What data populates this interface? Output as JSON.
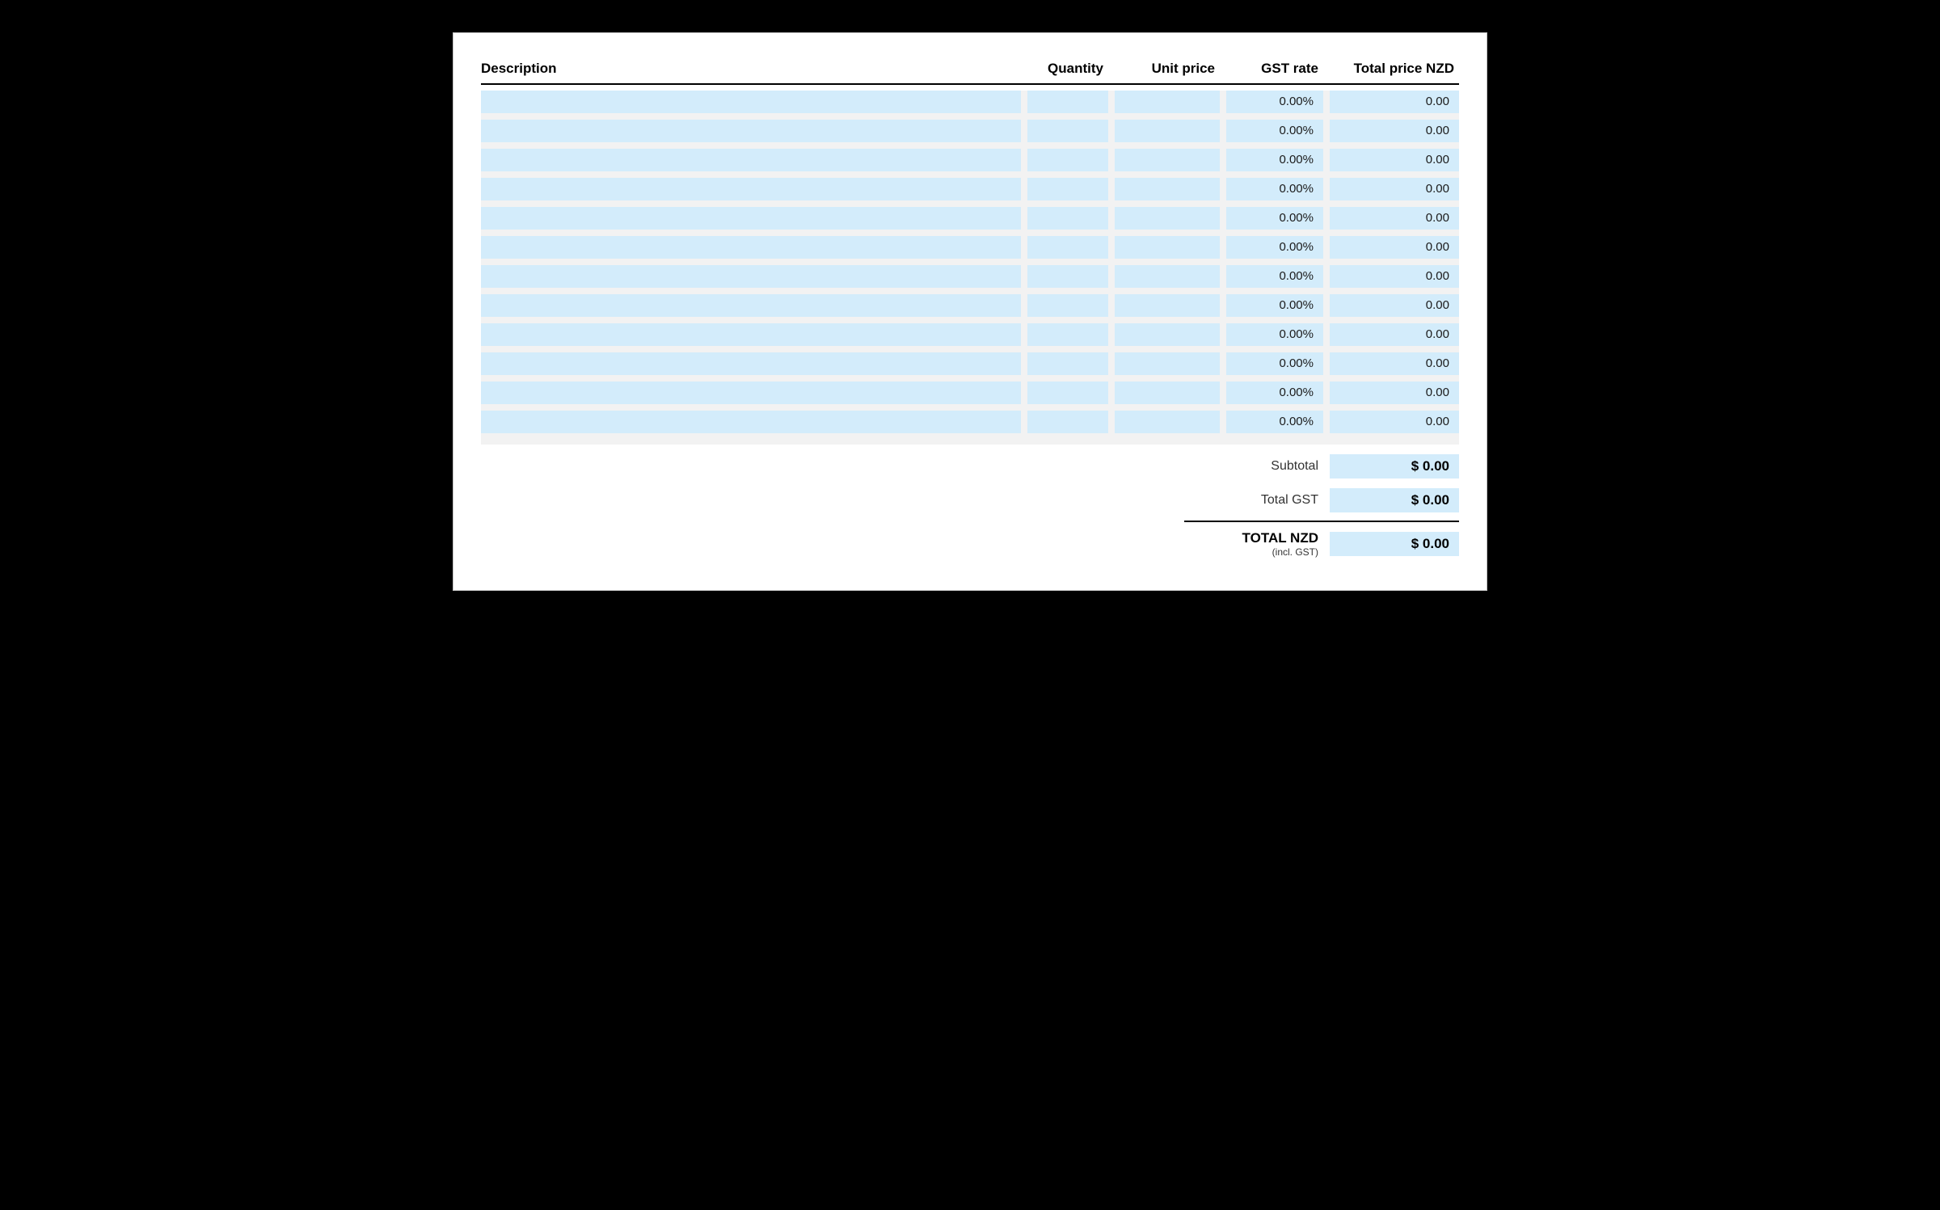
{
  "colors": {
    "page_bg": "#ffffff",
    "outer_bg": "#000000",
    "row_bg": "#f2f2f2",
    "cell_bg": "#d3ecfb",
    "text": "#000000",
    "border": "#000000"
  },
  "table": {
    "columns": [
      {
        "key": "description",
        "label": "Description",
        "align": "left"
      },
      {
        "key": "quantity",
        "label": "Quantity",
        "align": "right"
      },
      {
        "key": "unit_price",
        "label": "Unit price",
        "align": "right"
      },
      {
        "key": "gst_rate",
        "label": "GST rate",
        "align": "right"
      },
      {
        "key": "total_price",
        "label": "Total price NZD",
        "align": "right"
      }
    ],
    "rows": [
      {
        "description": "",
        "quantity": "",
        "unit_price": "",
        "gst_rate": "0.00%",
        "total_price": "0.00"
      },
      {
        "description": "",
        "quantity": "",
        "unit_price": "",
        "gst_rate": "0.00%",
        "total_price": "0.00"
      },
      {
        "description": "",
        "quantity": "",
        "unit_price": "",
        "gst_rate": "0.00%",
        "total_price": "0.00"
      },
      {
        "description": "",
        "quantity": "",
        "unit_price": "",
        "gst_rate": "0.00%",
        "total_price": "0.00"
      },
      {
        "description": "",
        "quantity": "",
        "unit_price": "",
        "gst_rate": "0.00%",
        "total_price": "0.00"
      },
      {
        "description": "",
        "quantity": "",
        "unit_price": "",
        "gst_rate": "0.00%",
        "total_price": "0.00"
      },
      {
        "description": "",
        "quantity": "",
        "unit_price": "",
        "gst_rate": "0.00%",
        "total_price": "0.00"
      },
      {
        "description": "",
        "quantity": "",
        "unit_price": "",
        "gst_rate": "0.00%",
        "total_price": "0.00"
      },
      {
        "description": "",
        "quantity": "",
        "unit_price": "",
        "gst_rate": "0.00%",
        "total_price": "0.00"
      },
      {
        "description": "",
        "quantity": "",
        "unit_price": "",
        "gst_rate": "0.00%",
        "total_price": "0.00"
      },
      {
        "description": "",
        "quantity": "",
        "unit_price": "",
        "gst_rate": "0.00%",
        "total_price": "0.00"
      },
      {
        "description": "",
        "quantity": "",
        "unit_price": "",
        "gst_rate": "0.00%",
        "total_price": "0.00"
      }
    ]
  },
  "totals": {
    "subtotal_label": "Subtotal",
    "subtotal_value": "$ 0.00",
    "gst_label": "Total GST",
    "gst_value": "$ 0.00",
    "total_label": "TOTAL NZD",
    "total_sublabel": "(incl. GST)",
    "total_value": "$ 0.00"
  }
}
